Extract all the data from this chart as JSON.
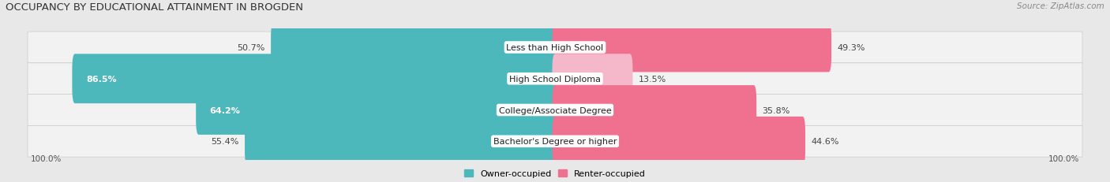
{
  "title": "OCCUPANCY BY EDUCATIONAL ATTAINMENT IN BROGDEN",
  "source": "Source: ZipAtlas.com",
  "categories": [
    "Less than High School",
    "High School Diploma",
    "College/Associate Degree",
    "Bachelor's Degree or higher"
  ],
  "owner_pct": [
    50.7,
    86.5,
    64.2,
    55.4
  ],
  "renter_pct": [
    49.3,
    13.5,
    35.8,
    44.6
  ],
  "owner_color": "#4db8bc",
  "renter_color": "#f07090",
  "renter_light_color": "#f5b8cb",
  "bg_color": "#e8e8e8",
  "row_bg_color": "#f2f2f2",
  "bar_height": 0.58,
  "label_fontsize": 8.0,
  "title_fontsize": 9.5,
  "source_fontsize": 7.5,
  "legend_fontsize": 8.0,
  "total_width": 100.0
}
